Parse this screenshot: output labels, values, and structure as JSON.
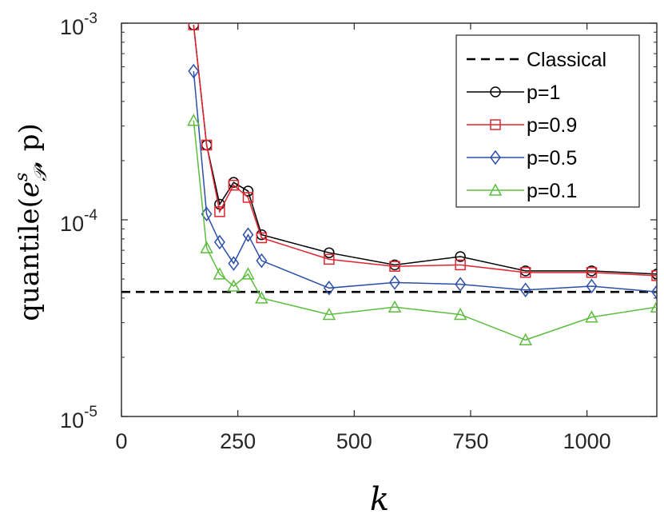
{
  "chart_data": {
    "type": "line",
    "xlabel": "k",
    "ylabel": "quantile(e^s_P, p)",
    "ylabel_parts": {
      "fn": "quantile(",
      "e": "e",
      "sup": "s",
      "sub": "𝒫",
      "rest": ", p)"
    },
    "xlim": [
      0,
      1150
    ],
    "ylim": [
      1e-05,
      0.001
    ],
    "yscale": "log",
    "grid": false,
    "legend_position": "top-right",
    "x_ticks": [
      0,
      250,
      500,
      750,
      1000
    ],
    "x_tick_labels": [
      "0",
      "250",
      "500",
      "750",
      "1000"
    ],
    "y_ticks": [
      {
        "value": 0.001,
        "base": "10",
        "exp": "-3"
      },
      {
        "value": 0.0001,
        "base": "10",
        "exp": "-4"
      },
      {
        "value": 1e-05,
        "base": "10",
        "exp": "-5"
      }
    ],
    "x": [
      155,
      183,
      211,
      241,
      272,
      301,
      446,
      587,
      728,
      868,
      1010,
      1150
    ],
    "series": [
      {
        "name": "Classical",
        "style": "dashed",
        "marker": "none",
        "color": "#000000",
        "x": [
          0,
          1150
        ],
        "values": [
          4.3e-05,
          4.3e-05
        ]
      },
      {
        "name": "p=1",
        "style": "solid",
        "marker": "circle",
        "color": "#000000",
        "values": [
          0.00098,
          0.00024,
          0.00012,
          0.000155,
          0.00014,
          8.4e-05,
          6.8e-05,
          5.9e-05,
          6.5e-05,
          5.5e-05,
          5.5e-05,
          5.3e-05
        ]
      },
      {
        "name": "p=0.9",
        "style": "solid",
        "marker": "square",
        "color": "#e0242f",
        "values": [
          0.00098,
          0.00024,
          0.00011,
          0.00015,
          0.00013,
          8.1e-05,
          6.3e-05,
          5.8e-05,
          5.9e-05,
          5.4e-05,
          5.4e-05,
          5.2e-05
        ]
      },
      {
        "name": "p=0.5",
        "style": "solid",
        "marker": "diamond",
        "color": "#2b4fa8",
        "values": [
          0.00057,
          0.000107,
          7.7e-05,
          6e-05,
          8.4e-05,
          6.2e-05,
          4.5e-05,
          4.8e-05,
          4.7e-05,
          4.4e-05,
          4.6e-05,
          4.3e-05
        ]
      },
      {
        "name": "p=0.1",
        "style": "solid",
        "marker": "triangle",
        "color": "#5cbd3f",
        "values": [
          0.00032,
          7.2e-05,
          5.3e-05,
          4.6e-05,
          5.3e-05,
          4e-05,
          3.3e-05,
          3.6e-05,
          3.3e-05,
          2.45e-05,
          3.2e-05,
          3.6e-05
        ]
      }
    ]
  }
}
